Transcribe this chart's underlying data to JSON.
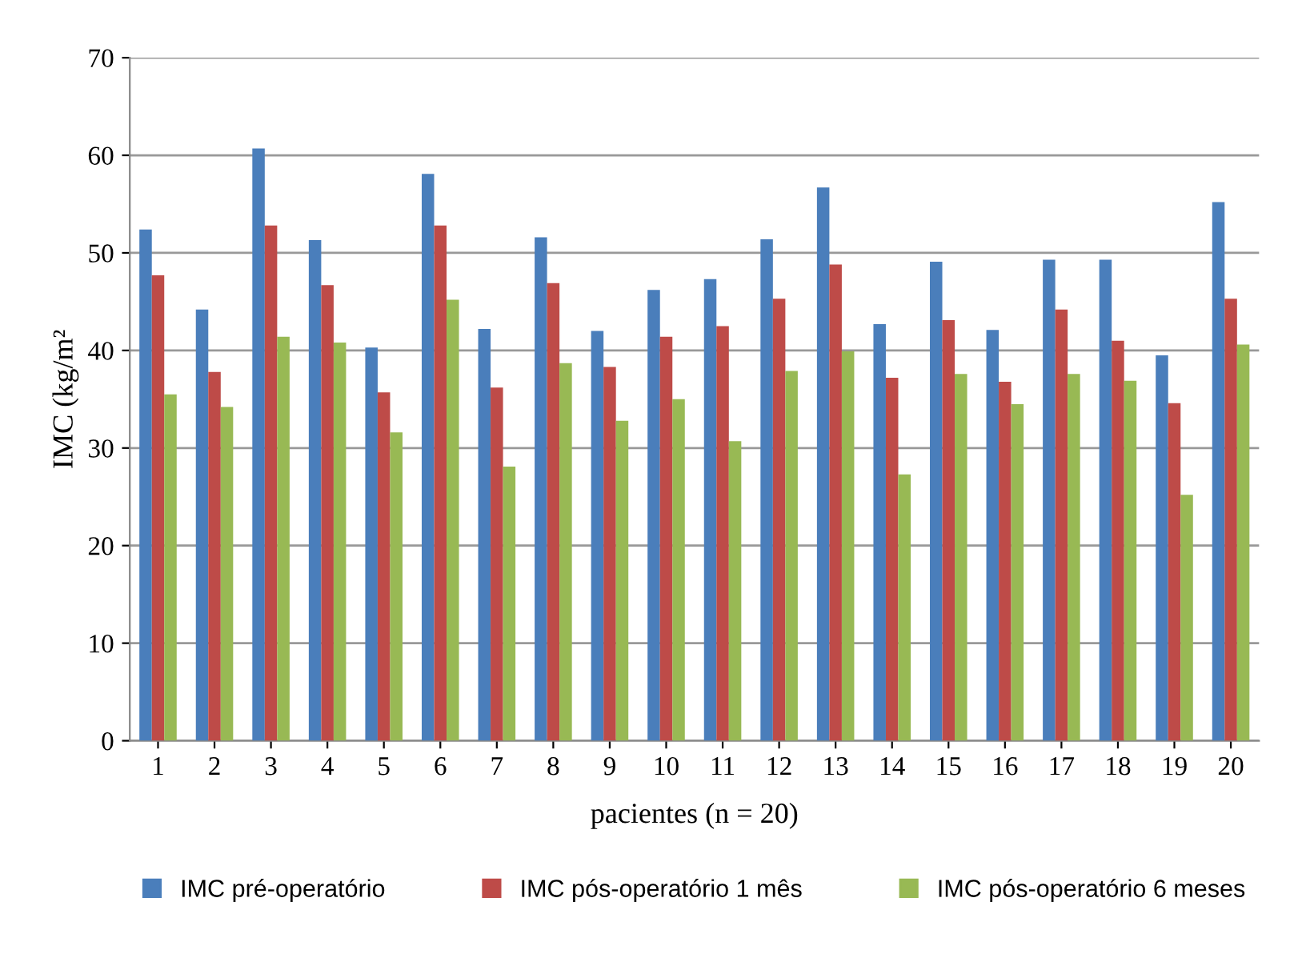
{
  "chart_data": {
    "type": "bar",
    "xlabel": "pacientes (n = 20)",
    "ylabel": "IMC (kg/m²",
    "categories": [
      "1",
      "2",
      "3",
      "4",
      "5",
      "6",
      "7",
      "8",
      "9",
      "10",
      "11",
      "12",
      "13",
      "14",
      "15",
      "16",
      "17",
      "18",
      "19",
      "20"
    ],
    "series": [
      {
        "name": "IMC pré-operatório",
        "color": "#4a7ebb",
        "values": [
          52.4,
          44.2,
          60.7,
          51.3,
          40.3,
          58.1,
          42.2,
          51.6,
          42.0,
          46.2,
          47.3,
          51.4,
          56.7,
          42.7,
          49.1,
          42.1,
          49.3,
          49.3,
          39.5,
          55.2
        ]
      },
      {
        "name": "IMC pós-operatório 1 mês",
        "color": "#be4b48",
        "values": [
          47.7,
          37.8,
          52.8,
          46.7,
          35.7,
          52.8,
          36.2,
          46.9,
          38.3,
          41.4,
          42.5,
          45.3,
          48.8,
          37.2,
          43.1,
          36.8,
          44.2,
          41.0,
          34.6,
          45.3
        ]
      },
      {
        "name": "IMC pós-operatório 6 meses",
        "color": "#98b954",
        "values": [
          35.5,
          34.2,
          41.4,
          40.8,
          31.6,
          45.2,
          28.1,
          38.7,
          32.8,
          35.0,
          30.7,
          37.9,
          39.9,
          27.3,
          37.6,
          34.5,
          37.6,
          36.9,
          25.2,
          40.6
        ]
      }
    ],
    "ylim": [
      0,
      70
    ],
    "yticks": [
      0,
      10,
      20,
      30,
      40,
      50,
      60,
      70
    ],
    "grid": "y",
    "legend": "bottom"
  }
}
